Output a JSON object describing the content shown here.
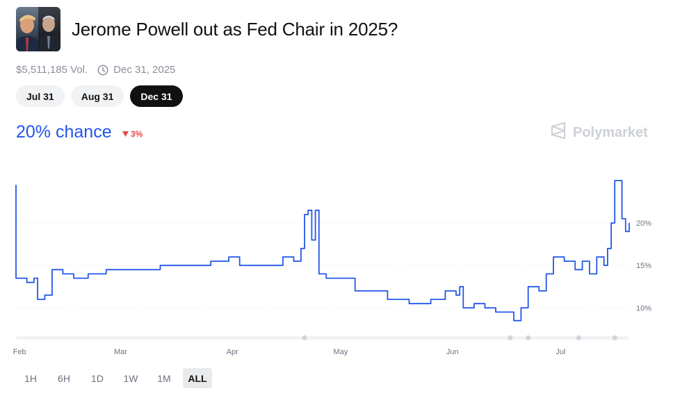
{
  "market": {
    "title": "Jerome Powell out as Fed Chair in 2025?",
    "volume": "$5,511,185 Vol.",
    "end_date": "Dec 31, 2025",
    "icon": "clock-icon",
    "thumbnail": "market-image"
  },
  "date_tabs": [
    {
      "label": "Jul 31",
      "active": false
    },
    {
      "label": "Aug 31",
      "active": false
    },
    {
      "label": "Dec 31",
      "active": true
    }
  ],
  "headline": {
    "chance": "20% chance",
    "change": "3%",
    "change_direction": "down",
    "color": "#2156e8",
    "change_color": "#e5484d"
  },
  "brand": {
    "name": "Polymarket",
    "icon": "polymarket-logo-icon"
  },
  "ranges": [
    {
      "label": "1H",
      "active": false
    },
    {
      "label": "6H",
      "active": false
    },
    {
      "label": "1D",
      "active": false
    },
    {
      "label": "1W",
      "active": false
    },
    {
      "label": "1M",
      "active": false
    },
    {
      "label": "ALL",
      "active": true
    }
  ],
  "chart_data": {
    "type": "line",
    "title": "",
    "xlabel": "",
    "ylabel": "",
    "x_ticks": [
      "Feb",
      "Mar",
      "Apr",
      "May",
      "Jun",
      "Jul"
    ],
    "y_ticks": [
      "10%",
      "15%",
      "20%"
    ],
    "ylim": [
      7,
      25
    ],
    "y_axis_side": "right",
    "grid": "dotted horizontal",
    "line_color": "#2156e8",
    "series": [
      {
        "name": "",
        "points": [
          [
            "Jan 31",
            24.5
          ],
          [
            "Jan 31",
            13.5
          ],
          [
            "Feb 3",
            13.0
          ],
          [
            "Feb 5",
            13.5
          ],
          [
            "Feb 6",
            11.0
          ],
          [
            "Feb 8",
            11.5
          ],
          [
            "Feb 10",
            14.5
          ],
          [
            "Feb 13",
            14.0
          ],
          [
            "Feb 16",
            13.5
          ],
          [
            "Feb 20",
            14.0
          ],
          [
            "Feb 25",
            14.5
          ],
          [
            "Mar 2",
            14.5
          ],
          [
            "Mar 6",
            14.5
          ],
          [
            "Mar 12",
            15.0
          ],
          [
            "Mar 20",
            15.0
          ],
          [
            "Mar 26",
            15.5
          ],
          [
            "Mar 31",
            16.0
          ],
          [
            "Apr 3",
            15.0
          ],
          [
            "Apr 7",
            15.0
          ],
          [
            "Apr 12",
            15.0
          ],
          [
            "Apr 15",
            16.0
          ],
          [
            "Apr 18",
            15.5
          ],
          [
            "Apr 20",
            17.0
          ],
          [
            "Apr 21",
            21.0
          ],
          [
            "Apr 22",
            21.5
          ],
          [
            "Apr 23",
            18.0
          ],
          [
            "Apr 24",
            21.5
          ],
          [
            "Apr 25",
            14.0
          ],
          [
            "Apr 27",
            13.5
          ],
          [
            "May 1",
            13.5
          ],
          [
            "May 5",
            12.0
          ],
          [
            "May 10",
            12.0
          ],
          [
            "May 14",
            11.0
          ],
          [
            "May 20",
            10.5
          ],
          [
            "May 26",
            11.0
          ],
          [
            "May 30",
            12.0
          ],
          [
            "Jun 2",
            11.5
          ],
          [
            "Jun 3",
            12.5
          ],
          [
            "Jun 4",
            10.0
          ],
          [
            "Jun 7",
            10.5
          ],
          [
            "Jun 10",
            10.0
          ],
          [
            "Jun 13",
            9.5
          ],
          [
            "Jun 16",
            9.5
          ],
          [
            "Jun 18",
            8.5
          ],
          [
            "Jun 20",
            10.0
          ],
          [
            "Jun 22",
            12.5
          ],
          [
            "Jun 25",
            12.0
          ],
          [
            "Jun 27",
            14.0
          ],
          [
            "Jun 29",
            16.0
          ],
          [
            "Jul 2",
            15.5
          ],
          [
            "Jul 5",
            14.5
          ],
          [
            "Jul 7",
            15.5
          ],
          [
            "Jul 9",
            14.0
          ],
          [
            "Jul 11",
            16.0
          ],
          [
            "Jul 13",
            15.0
          ],
          [
            "Jul 14",
            17.0
          ],
          [
            "Jul 15",
            20.0
          ],
          [
            "Jul 16",
            25.0
          ],
          [
            "Jul 18",
            20.5
          ],
          [
            "Jul 19",
            19.0
          ],
          [
            "Jul 20",
            20.0
          ]
        ]
      }
    ]
  }
}
